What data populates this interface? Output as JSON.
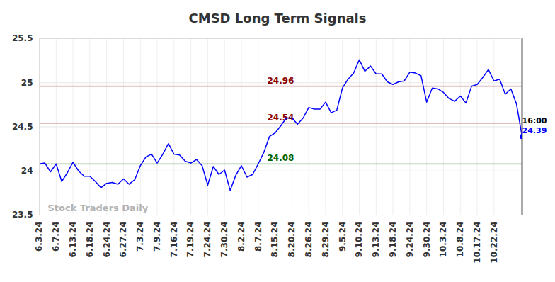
{
  "chart_data": {
    "type": "line",
    "title": "CMSD Long Term Signals",
    "color": "#0000ff",
    "categories": [
      "6.3.24",
      null,
      null,
      "6.7.24",
      null,
      null,
      "6.13.24",
      null,
      null,
      "6.18.24",
      null,
      null,
      "6.24.24",
      null,
      null,
      "6.27.24",
      null,
      null,
      "7.3.24",
      null,
      null,
      "7.9.24",
      null,
      null,
      "7.16.24",
      null,
      null,
      "7.19.24",
      null,
      null,
      "7.24.24",
      null,
      null,
      "7.30.24",
      null,
      null,
      "8.2.24",
      null,
      null,
      "8.7.24",
      null,
      null,
      "8.15.24",
      null,
      null,
      "8.20.24",
      null,
      null,
      "8.26.24",
      null,
      null,
      "8.29.24",
      null,
      null,
      "9.5.24",
      null,
      null,
      "9.10.24",
      null,
      null,
      "9.13.24",
      null,
      null,
      "9.18.24",
      null,
      null,
      "9.24.24",
      null,
      null,
      "9.30.24",
      null,
      null,
      "10.3.24",
      null,
      null,
      "10.8.24",
      null,
      null,
      "10.17.24",
      null,
      null,
      "10.22.24",
      null,
      null,
      null,
      null,
      null
    ],
    "values": [
      24.08,
      24.09,
      23.99,
      24.08,
      23.88,
      23.98,
      24.1,
      24.0,
      23.94,
      23.94,
      23.88,
      23.81,
      23.86,
      23.87,
      23.85,
      23.91,
      23.85,
      23.9,
      24.06,
      24.16,
      24.19,
      24.09,
      24.19,
      24.31,
      24.19,
      24.18,
      24.11,
      24.09,
      24.13,
      24.06,
      23.84,
      24.05,
      23.96,
      24.01,
      23.78,
      23.95,
      24.06,
      23.93,
      23.96,
      24.08,
      24.21,
      24.39,
      24.43,
      24.51,
      24.6,
      24.6,
      24.53,
      24.6,
      24.72,
      24.7,
      24.7,
      24.78,
      24.66,
      24.69,
      24.94,
      25.04,
      25.11,
      25.26,
      25.13,
      25.19,
      25.1,
      25.1,
      25.01,
      24.98,
      25.01,
      25.02,
      25.12,
      25.11,
      25.08,
      24.78,
      24.94,
      24.93,
      24.89,
      24.82,
      24.79,
      24.85,
      24.77,
      24.96,
      24.98,
      25.06,
      25.15,
      25.02,
      25.04,
      24.87,
      24.93,
      24.76,
      24.39
    ],
    "ylim": [
      23.5,
      25.5
    ],
    "yticks": [
      23.5,
      24,
      24.5,
      25,
      25.5
    ],
    "grid": true,
    "reference_lines": [
      {
        "value": 24.96,
        "color": "#8b0000"
      },
      {
        "value": 24.54,
        "color": "#8b0000"
      },
      {
        "value": 24.08,
        "color": "#006400"
      }
    ],
    "last_point_label": "16:00",
    "watermark": "Stock Traders Daily"
  }
}
